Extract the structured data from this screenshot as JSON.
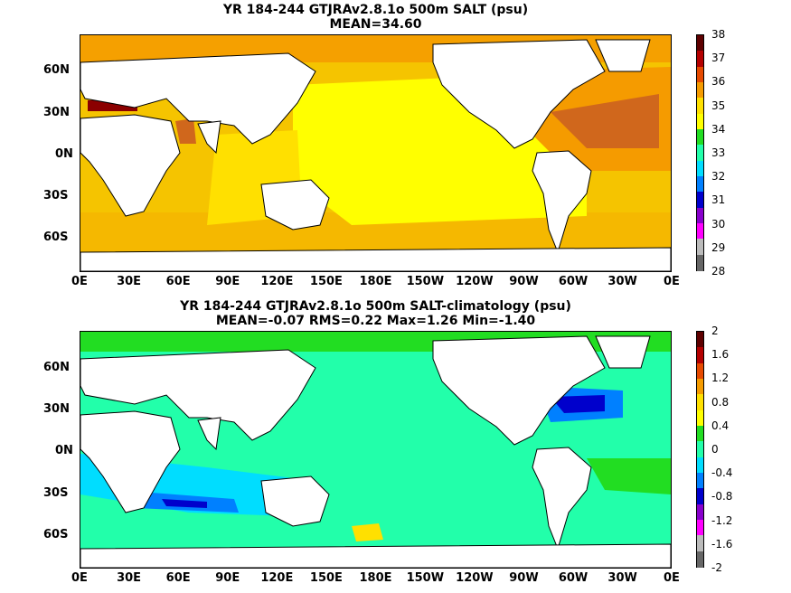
{
  "panels": [
    {
      "title_line1": "YR 184-244 GTJRAv2.8.1o 500m SALT (psu)",
      "title_line2": "MEAN=34.60",
      "lat_labels": [
        "60N",
        "30N",
        "0N",
        "30S",
        "60S"
      ],
      "lon_labels": [
        "0E",
        "30E",
        "60E",
        "90E",
        "120E",
        "150E",
        "180E",
        "150W",
        "120W",
        "90W",
        "60W",
        "30W",
        "0E"
      ],
      "colorbar": {
        "labels": [
          "38",
          "37",
          "36",
          "35",
          "34",
          "33",
          "32",
          "31",
          "30",
          "29",
          "28"
        ],
        "colors": [
          "#5e0000",
          "#b40000",
          "#e64a00",
          "#f59b00",
          "#ffe000",
          "#ffff00",
          "#22dd22",
          "#22ffaa",
          "#00ddff",
          "#0080ff",
          "#0000cc",
          "#8800cc",
          "#ff00ff",
          "#bbbbbb",
          "#666666"
        ]
      }
    },
    {
      "title_line1": "YR 184-244 GTJRAv2.8.1o 500m SALT-climatology (psu)",
      "title_line2": "MEAN=-0.07   RMS=0.22   Max=1.26   Min=-1.40",
      "lat_labels": [
        "60N",
        "30N",
        "0N",
        "30S",
        "60S"
      ],
      "lon_labels": [
        "0E",
        "30E",
        "60E",
        "90E",
        "120E",
        "150E",
        "180E",
        "150W",
        "120W",
        "90W",
        "60W",
        "30W",
        "0E"
      ],
      "colorbar": {
        "labels": [
          "2",
          "1.6",
          "1.2",
          "0.8",
          "0.4",
          "0",
          "-0.4",
          "-0.8",
          "-1.2",
          "-1.6",
          "-2"
        ],
        "colors": [
          "#5e0000",
          "#b40000",
          "#e64a00",
          "#f59b00",
          "#ffe000",
          "#ffff00",
          "#22dd22",
          "#22ffaa",
          "#00ddff",
          "#0080ff",
          "#0000cc",
          "#8800cc",
          "#ff00ff",
          "#bbbbbb",
          "#666666"
        ]
      }
    }
  ]
}
